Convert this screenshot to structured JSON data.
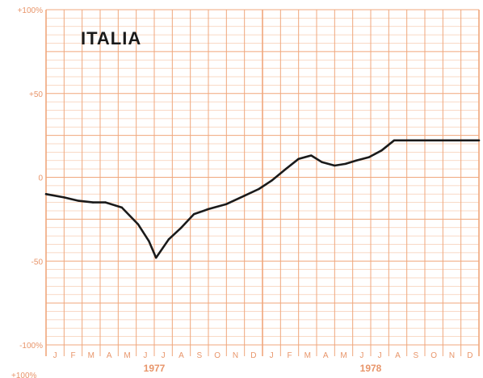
{
  "chart_data": {
    "type": "line",
    "title": "ITALIA",
    "xlabel": "",
    "ylabel": "",
    "ylim": [
      -100,
      100
    ],
    "y_ticks": [
      {
        "value": 100,
        "label": "+100%"
      },
      {
        "value": 50,
        "label": "+50"
      },
      {
        "value": 0,
        "label": "0"
      },
      {
        "value": -50,
        "label": "-50"
      },
      {
        "value": -100,
        "label": "-100%"
      }
    ],
    "bottom_edge_label": "+100%",
    "months": [
      "J",
      "F",
      "M",
      "A",
      "M",
      "J",
      "J",
      "A",
      "S",
      "O",
      "N",
      "D",
      "J",
      "F",
      "M",
      "A",
      "M",
      "J",
      "J",
      "A",
      "S",
      "O",
      "N",
      "D"
    ],
    "years": [
      "1977",
      "1978"
    ],
    "grid": true,
    "colors": {
      "grid": "#f0a77c",
      "grid_minor": "#f7cdb3",
      "line": "#1a1a1a",
      "text": "#e8956a"
    },
    "series": [
      {
        "x": [
          0,
          1,
          1.8,
          2.6,
          3.3,
          4.2,
          5.1,
          5.7,
          6.1,
          6.8,
          7.5,
          8.2,
          9,
          10,
          11,
          11.8,
          12.5,
          13.3,
          14,
          14.7,
          15.3,
          16,
          16.6,
          17.2,
          17.9,
          18.6,
          19.3,
          20,
          20.6,
          21.3,
          22,
          22.6,
          23.3,
          24
        ],
        "y": [
          -10,
          -12,
          -14,
          -15,
          -15,
          -18,
          -28,
          -38,
          -48,
          -37,
          -30,
          -22,
          -19,
          -16,
          -11,
          -7,
          -2,
          5,
          11,
          13,
          9,
          7,
          8,
          10,
          12,
          16,
          22,
          22,
          22,
          22,
          22,
          22,
          22,
          22
        ]
      }
    ]
  }
}
